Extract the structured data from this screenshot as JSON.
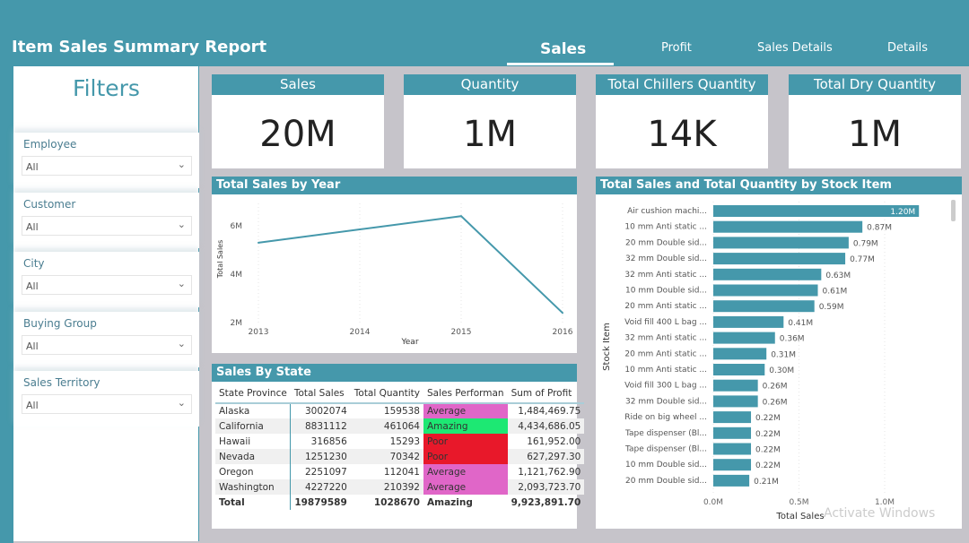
{
  "header": {
    "title": "Item Sales Summary Report",
    "tabs": [
      "Sales",
      "Profit",
      "Sales Details",
      "Details"
    ]
  },
  "filters": {
    "title": "Filters",
    "slicers": [
      {
        "label": "Employee",
        "value": "All"
      },
      {
        "label": "Customer",
        "value": "All"
      },
      {
        "label": "City",
        "value": "All"
      },
      {
        "label": "Buying Group",
        "value": "All"
      },
      {
        "label": "Sales Territory",
        "value": "All"
      }
    ]
  },
  "cards": [
    {
      "label": "Sales",
      "value": "20M"
    },
    {
      "label": "Quantity",
      "value": "1M"
    },
    {
      "label": "Total Chillers Quantity",
      "value": "14K"
    },
    {
      "label": "Total Dry Quantity",
      "value": "1M"
    }
  ],
  "colors": {
    "accent": "#4598ab",
    "amazing": "#1de873",
    "average": "#e066c8",
    "poor": "#e8182a"
  },
  "chart_data": [
    {
      "type": "line",
      "title": "Total Sales by Year",
      "xlabel": "Year",
      "ylabel": "Total Sales",
      "x": [
        2013,
        2014,
        2015,
        2016
      ],
      "values": [
        5.3,
        5.85,
        6.4,
        2.4
      ],
      "unit": "M",
      "yticks": [
        "2M",
        "4M",
        "6M"
      ],
      "ylim": [
        2,
        6.5
      ],
      "grid": true
    },
    {
      "type": "bar",
      "orientation": "horizontal",
      "title": "Total Sales and Total Quantity by Stock Item",
      "xlabel": "Total Sales",
      "ylabel": "Stock Item",
      "xticks": [
        "0.0M",
        "0.5M",
        "1.0M"
      ],
      "xlim": [
        0,
        1.2
      ],
      "categories": [
        "Air cushion machi...",
        "10 mm Anti static ...",
        "20 mm Double sid...",
        "32 mm Double sid...",
        "32 mm Anti static ...",
        "10 mm Double sid...",
        "20 mm Anti static ...",
        "Void fill 400 L bag ...",
        "32 mm Anti static ...",
        "20 mm Anti static ...",
        "10 mm Anti static ...",
        "Void fill 300 L bag ...",
        "32 mm Double sid...",
        "Ride on big wheel ...",
        "Tape dispenser (Bl...",
        "Tape dispenser (Bl...",
        "10 mm Double sid...",
        "20 mm Double sid..."
      ],
      "values": [
        1.2,
        0.87,
        0.79,
        0.77,
        0.63,
        0.61,
        0.59,
        0.41,
        0.36,
        0.31,
        0.3,
        0.26,
        0.26,
        0.22,
        0.22,
        0.22,
        0.22,
        0.21
      ],
      "labels": [
        "1.20M",
        "0.87M",
        "0.79M",
        "0.77M",
        "0.63M",
        "0.61M",
        "0.59M",
        "0.41M",
        "0.36M",
        "0.31M",
        "0.30M",
        "0.26M",
        "0.26M",
        "0.22M",
        "0.22M",
        "0.22M",
        "0.22M",
        "0.21M"
      ]
    }
  ],
  "state_table": {
    "title": "Sales By State",
    "columns": [
      "State Province",
      "Total Sales",
      "Total Quantity",
      "Sales Performan",
      "Sum of Profit"
    ],
    "rows": [
      [
        "Alaska",
        "3002074",
        "159538",
        "Average",
        "1,484,469.75"
      ],
      [
        "California",
        "8831112",
        "461064",
        "Amazing",
        "4,434,686.05"
      ],
      [
        "Hawaii",
        "316856",
        "15293",
        "Poor",
        "161,952.00"
      ],
      [
        "Nevada",
        "1251230",
        "70342",
        "Poor",
        "627,297.30"
      ],
      [
        "Oregon",
        "2251097",
        "112041",
        "Average",
        "1,121,762.90"
      ],
      [
        "Washington",
        "4227220",
        "210392",
        "Average",
        "2,093,723.70"
      ]
    ],
    "total": [
      "Total",
      "19879589",
      "1028670",
      "Amazing",
      "9,923,891.70"
    ]
  },
  "watermark": "Activate Windows"
}
